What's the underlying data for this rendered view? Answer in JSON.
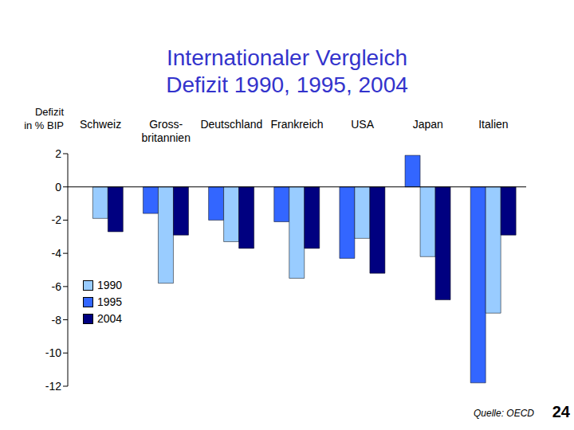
{
  "chart_data": {
    "type": "bar",
    "title": "Internationaler Vergleich",
    "subtitle": "Defizit 1990, 1995, 2004",
    "y_label": "Defizit in % BIP",
    "categories": [
      "Schweiz",
      "Gross-britannien",
      "Deutschland",
      "Frankreich",
      "USA",
      "Japan",
      "Italien"
    ],
    "series": [
      {
        "name": "1995",
        "color": "#3366ff",
        "values": [
          null,
          -1.6,
          -2.0,
          -2.1,
          -4.3,
          1.9,
          -11.8
        ]
      },
      {
        "name": "1990",
        "color": "#99ccff",
        "values": [
          -1.9,
          -5.8,
          -3.3,
          -5.5,
          -3.1,
          -4.2,
          -7.6
        ]
      },
      {
        "name": "2004",
        "color": "#000080",
        "values": [
          -2.7,
          -2.9,
          -3.7,
          -3.7,
          -5.2,
          -6.8,
          -2.9
        ]
      }
    ],
    "ylim": [
      -12,
      2
    ],
    "yticks": [
      -12,
      -10,
      -8,
      -6,
      -4,
      -2,
      0,
      2
    ],
    "grid": false,
    "legend": "lower left",
    "source": "Quelle: OECD",
    "page_number": 24
  }
}
